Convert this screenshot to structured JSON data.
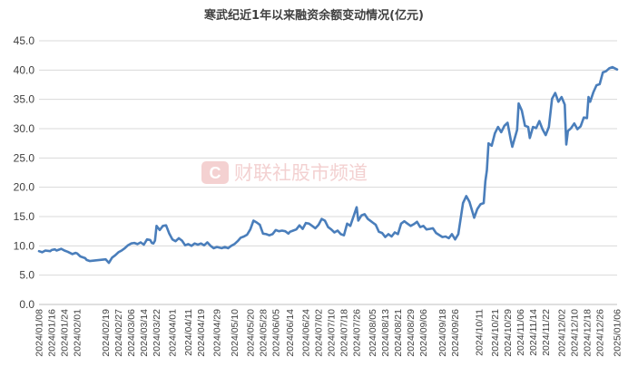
{
  "chart_data": {
    "type": "line",
    "title": "寒武纪近1年以来融资余额变动情况(亿元)",
    "xlabel": "",
    "ylabel": "",
    "ylim": [
      0,
      45
    ],
    "yticks": [
      "0.0",
      "5.0",
      "10.0",
      "15.0",
      "20.0",
      "25.0",
      "30.0",
      "35.0",
      "40.0",
      "45.0"
    ],
    "xlim": [
      "2024-01-08",
      "2025-01-06"
    ],
    "xticks": [
      "2024/01/08",
      "2024/01/16",
      "2024/01/24",
      "2024/02/01",
      "2024/02/19",
      "2024/02/27",
      "2024/03/06",
      "2024/03/14",
      "2024/03/22",
      "2024/04/01",
      "2024/04/11",
      "2024/04/19",
      "2024/04/29",
      "2024/05/10",
      "2024/05/20",
      "2024/05/28",
      "2024/06/05",
      "2024/06/14",
      "2024/06/24",
      "2024/07/02",
      "2024/07/10",
      "2024/07/18",
      "2024/07/26",
      "2024/08/05",
      "2024/08/13",
      "2024/08/21",
      "2024/08/29",
      "2024/09/06",
      "2024/09/18",
      "2024/09/26",
      "2024/10/11",
      "2024/10/21",
      "2024/10/29",
      "2024/11/06",
      "2024/11/14",
      "2024/11/22",
      "2024/12/02",
      "2024/12/10",
      "2024/12/18",
      "2024/12/26",
      "2025/01/06"
    ],
    "grid": "horizontal",
    "legend": "none",
    "line_color": "#4a7ebb",
    "series": [
      {
        "values": [
          [
            "2024-01-08",
            9.1
          ],
          [
            "2024-01-10",
            8.9
          ],
          [
            "2024-01-12",
            9.2
          ],
          [
            "2024-01-15",
            9.1
          ],
          [
            "2024-01-16",
            9.3
          ],
          [
            "2024-01-18",
            9.4
          ],
          [
            "2024-01-19",
            9.2
          ],
          [
            "2024-01-22",
            9.5
          ],
          [
            "2024-01-24",
            9.2
          ],
          [
            "2024-01-26",
            9.0
          ],
          [
            "2024-01-29",
            8.6
          ],
          [
            "2024-01-31",
            8.8
          ],
          [
            "2024-02-01",
            8.7
          ],
          [
            "2024-02-03",
            8.2
          ],
          [
            "2024-02-06",
            7.9
          ],
          [
            "2024-02-07",
            7.6
          ],
          [
            "2024-02-09",
            7.4
          ],
          [
            "2024-02-19",
            7.7
          ],
          [
            "2024-02-21",
            7.1
          ],
          [
            "2024-02-23",
            8.0
          ],
          [
            "2024-02-25",
            8.4
          ],
          [
            "2024-02-27",
            8.9
          ],
          [
            "2024-02-29",
            9.2
          ],
          [
            "2024-03-02",
            9.6
          ],
          [
            "2024-03-04",
            10.1
          ],
          [
            "2024-03-06",
            10.4
          ],
          [
            "2024-03-08",
            10.5
          ],
          [
            "2024-03-10",
            10.3
          ],
          [
            "2024-03-12",
            10.6
          ],
          [
            "2024-03-14",
            10.2
          ],
          [
            "2024-03-16",
            11.1
          ],
          [
            "2024-03-18",
            11.0
          ],
          [
            "2024-03-19",
            10.5
          ],
          [
            "2024-03-20",
            10.4
          ],
          [
            "2024-03-21",
            10.9
          ],
          [
            "2024-03-22",
            13.4
          ],
          [
            "2024-03-24",
            12.7
          ],
          [
            "2024-03-26",
            13.4
          ],
          [
            "2024-03-28",
            13.5
          ],
          [
            "2024-03-30",
            12.1
          ],
          [
            "2024-04-01",
            11.1
          ],
          [
            "2024-04-03",
            10.8
          ],
          [
            "2024-04-05",
            11.3
          ],
          [
            "2024-04-07",
            10.9
          ],
          [
            "2024-04-09",
            10.1
          ],
          [
            "2024-04-11",
            10.3
          ],
          [
            "2024-04-13",
            10.0
          ],
          [
            "2024-04-15",
            10.4
          ],
          [
            "2024-04-17",
            10.2
          ],
          [
            "2024-04-19",
            10.4
          ],
          [
            "2024-04-21",
            10.1
          ],
          [
            "2024-04-23",
            10.6
          ],
          [
            "2024-04-25",
            10.0
          ],
          [
            "2024-04-27",
            9.6
          ],
          [
            "2024-04-29",
            9.8
          ],
          [
            "2024-05-02",
            9.6
          ],
          [
            "2024-05-04",
            9.8
          ],
          [
            "2024-05-06",
            9.6
          ],
          [
            "2024-05-08",
            10.0
          ],
          [
            "2024-05-10",
            10.3
          ],
          [
            "2024-05-12",
            10.8
          ],
          [
            "2024-05-14",
            11.4
          ],
          [
            "2024-05-16",
            11.6
          ],
          [
            "2024-05-18",
            11.9
          ],
          [
            "2024-05-20",
            12.8
          ],
          [
            "2024-05-22",
            14.3
          ],
          [
            "2024-05-24",
            14.0
          ],
          [
            "2024-05-26",
            13.6
          ],
          [
            "2024-05-28",
            12.1
          ],
          [
            "2024-05-30",
            12.0
          ],
          [
            "2024-06-01",
            11.8
          ],
          [
            "2024-06-03",
            12.0
          ],
          [
            "2024-06-05",
            12.7
          ],
          [
            "2024-06-07",
            12.5
          ],
          [
            "2024-06-09",
            12.6
          ],
          [
            "2024-06-11",
            12.5
          ],
          [
            "2024-06-13",
            12.1
          ],
          [
            "2024-06-14",
            12.4
          ],
          [
            "2024-06-16",
            12.6
          ],
          [
            "2024-06-18",
            12.8
          ],
          [
            "2024-06-20",
            13.5
          ],
          [
            "2024-06-22",
            12.9
          ],
          [
            "2024-06-24",
            13.9
          ],
          [
            "2024-06-26",
            13.8
          ],
          [
            "2024-06-28",
            13.4
          ],
          [
            "2024-06-30",
            13.0
          ],
          [
            "2024-07-02",
            13.6
          ],
          [
            "2024-07-04",
            14.6
          ],
          [
            "2024-07-06",
            14.3
          ],
          [
            "2024-07-08",
            13.2
          ],
          [
            "2024-07-10",
            12.8
          ],
          [
            "2024-07-12",
            12.3
          ],
          [
            "2024-07-14",
            12.6
          ],
          [
            "2024-07-16",
            12.0
          ],
          [
            "2024-07-18",
            11.8
          ],
          [
            "2024-07-20",
            13.8
          ],
          [
            "2024-07-22",
            13.4
          ],
          [
            "2024-07-24",
            15.0
          ],
          [
            "2024-07-26",
            16.6
          ],
          [
            "2024-07-27",
            14.3
          ],
          [
            "2024-07-29",
            15.2
          ],
          [
            "2024-07-31",
            15.4
          ],
          [
            "2024-08-02",
            14.6
          ],
          [
            "2024-08-04",
            14.2
          ],
          [
            "2024-08-05",
            14.0
          ],
          [
            "2024-08-07",
            13.6
          ],
          [
            "2024-08-09",
            12.4
          ],
          [
            "2024-08-11",
            12.2
          ],
          [
            "2024-08-13",
            11.5
          ],
          [
            "2024-08-15",
            12.0
          ],
          [
            "2024-08-17",
            11.6
          ],
          [
            "2024-08-19",
            12.3
          ],
          [
            "2024-08-21",
            12.0
          ],
          [
            "2024-08-23",
            13.8
          ],
          [
            "2024-08-25",
            14.2
          ],
          [
            "2024-08-27",
            13.8
          ],
          [
            "2024-08-29",
            13.4
          ],
          [
            "2024-08-31",
            13.7
          ],
          [
            "2024-09-02",
            14.1
          ],
          [
            "2024-09-04",
            13.2
          ],
          [
            "2024-09-06",
            13.4
          ],
          [
            "2024-09-08",
            12.8
          ],
          [
            "2024-09-10",
            12.9
          ],
          [
            "2024-09-12",
            13.0
          ],
          [
            "2024-09-14",
            12.2
          ],
          [
            "2024-09-18",
            11.5
          ],
          [
            "2024-09-20",
            11.6
          ],
          [
            "2024-09-22",
            11.3
          ],
          [
            "2024-09-24",
            12.0
          ],
          [
            "2024-09-26",
            11.1
          ],
          [
            "2024-09-28",
            12.0
          ],
          [
            "2024-10-01",
            17.3
          ],
          [
            "2024-10-03",
            18.5
          ],
          [
            "2024-10-05",
            17.5
          ],
          [
            "2024-10-08",
            14.8
          ],
          [
            "2024-10-10",
            16.3
          ],
          [
            "2024-10-12",
            17.1
          ],
          [
            "2024-10-14",
            17.3
          ],
          [
            "2024-10-15",
            21.0
          ],
          [
            "2024-10-16",
            22.9
          ],
          [
            "2024-10-17",
            27.5
          ],
          [
            "2024-10-19",
            27.1
          ],
          [
            "2024-10-21",
            29.2
          ],
          [
            "2024-10-23",
            30.3
          ],
          [
            "2024-10-25",
            29.4
          ],
          [
            "2024-10-27",
            30.5
          ],
          [
            "2024-10-29",
            31.0
          ],
          [
            "2024-10-31",
            28.1
          ],
          [
            "2024-11-01",
            26.9
          ],
          [
            "2024-11-04",
            29.8
          ],
          [
            "2024-11-05",
            34.3
          ],
          [
            "2024-11-07",
            33.1
          ],
          [
            "2024-11-09",
            30.5
          ],
          [
            "2024-11-11",
            30.3
          ],
          [
            "2024-11-12",
            28.4
          ],
          [
            "2024-11-14",
            30.3
          ],
          [
            "2024-11-16",
            30.1
          ],
          [
            "2024-11-18",
            31.3
          ],
          [
            "2024-11-20",
            29.9
          ],
          [
            "2024-11-22",
            28.9
          ],
          [
            "2024-11-24",
            30.3
          ],
          [
            "2024-11-26",
            35.1
          ],
          [
            "2024-11-28",
            36.1
          ],
          [
            "2024-11-30",
            34.6
          ],
          [
            "2024-12-02",
            35.4
          ],
          [
            "2024-12-04",
            34.1
          ],
          [
            "2024-12-05",
            27.3
          ],
          [
            "2024-12-06",
            29.6
          ],
          [
            "2024-12-08",
            30.1
          ],
          [
            "2024-12-10",
            30.9
          ],
          [
            "2024-12-12",
            29.9
          ],
          [
            "2024-12-14",
            30.4
          ],
          [
            "2024-12-16",
            31.9
          ],
          [
            "2024-12-18",
            31.8
          ],
          [
            "2024-12-19",
            35.4
          ],
          [
            "2024-12-20",
            34.6
          ],
          [
            "2024-12-22",
            36.2
          ],
          [
            "2024-12-24",
            37.4
          ],
          [
            "2024-12-26",
            37.6
          ],
          [
            "2024-12-28",
            39.6
          ],
          [
            "2024-12-30",
            39.8
          ],
          [
            "2025-01-01",
            40.3
          ],
          [
            "2025-01-03",
            40.5
          ],
          [
            "2025-01-06",
            40.1
          ]
        ]
      }
    ]
  },
  "watermark": {
    "text": "财联社股市频道",
    "logo_letter": "C"
  }
}
